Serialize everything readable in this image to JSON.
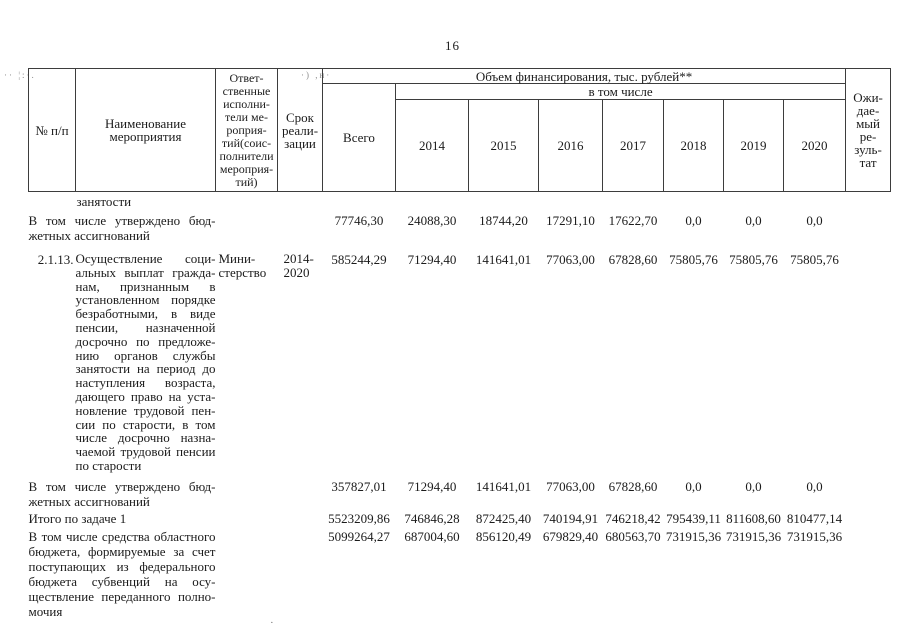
{
  "page": {
    "number": "16"
  },
  "artifacts": {
    "top_left": "·· ¦:·.",
    "header_noise": "·) ,н·",
    "bottom_dot": "·"
  },
  "table": {
    "header": {
      "col_num": "№ п/п",
      "col_name": "Наименование\nмероприятия",
      "col_executors": "Ответ-\nственные\nисполни-\nтели ме-\nроприя-\nтий(соис-\nполнители\nмероприя-\nтий)",
      "col_term": "Срок\nреали-\nзации",
      "col_financing": "Объем финансирования, тыс. рублей**",
      "col_total": "Всего",
      "col_including": "в том числе",
      "years": [
        "2014",
        "2015",
        "2016",
        "2017",
        "2018",
        "2019",
        "2020"
      ],
      "col_result": "Ожи-\nдае-\nмый\nре-\nзуль-\nтат"
    },
    "rows": {
      "carryover": {
        "text": "занятости"
      },
      "approved1": {
        "label_main": "В том числе утверждено бюд-",
        "label_last": "жетных ассигнований",
        "values": [
          "77746,30",
          "24088,30",
          "18744,20",
          "17291,10",
          "17622,70",
          "0,0",
          "0,0",
          "0,0"
        ]
      },
      "item_2_1_13": {
        "num": "2.1.13.",
        "name_main": "Осуществление соци-\nальных выплат гражда-\nнам, признанным в\nустановленном порядке\nбезработными, в виде\nпенсии, назначенной\nдосрочно по предложе-\nнию органов службы\nзанятости на период до\nнаступления возраста,\nдающего право на уста-\nновление трудовой пен-\nсии по старости, в том\nчисле досрочно назна-\nчаемой трудовой пенсии",
        "name_last": "по старости",
        "executor": "Мини-\nстерство",
        "term": "2014-\n2020",
        "values": [
          "585244,29",
          "71294,40",
          "141641,01",
          "77063,00",
          "67828,60",
          "75805,76",
          "75805,76",
          "75805,76"
        ]
      },
      "approved2": {
        "label_main": "В том числе утверждено бюд-",
        "label_last": "жетных ассигнований",
        "values": [
          "357827,01",
          "71294,40",
          "141641,01",
          "77063,00",
          "67828,60",
          "0,0",
          "0,0",
          "0,0"
        ]
      },
      "total_task1": {
        "label": "Итого по задаче 1",
        "values": [
          "5523209,86",
          "746846,28",
          "872425,40",
          "740194,91",
          "746218,42",
          "795439,11",
          "811608,60",
          "810477,14"
        ]
      },
      "regional": {
        "label_main": "В том числе средства областного\nбюджета, формируемые за счет\nпоступающих из федерального\nбюджета субвенций на осу-\nществление переданного полно-",
        "label_last": "мочия",
        "values": [
          "5099264,27",
          "687004,60",
          "856120,49",
          "679829,40",
          "680563,70",
          "731915,36",
          "731915,36",
          "731915,36"
        ]
      }
    }
  }
}
